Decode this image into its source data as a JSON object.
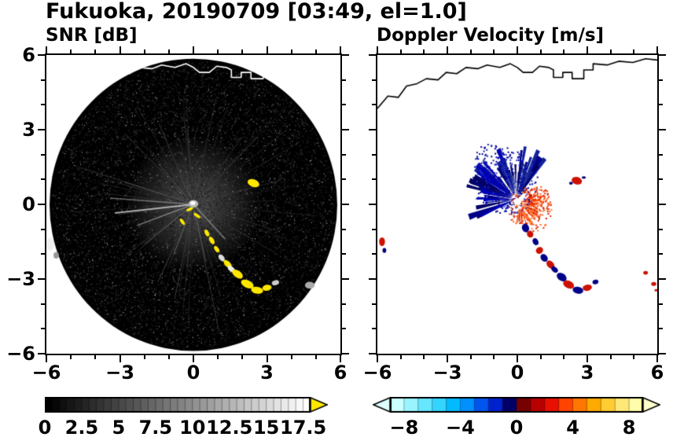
{
  "title": "Fukuoka, 20190709 [03:49, el=1.0]",
  "panels": {
    "snr": {
      "title": "SNR [dB]"
    },
    "velocity": {
      "title": "Doppler Velocity [m/s]"
    }
  },
  "chart_data": [
    {
      "id": "snr",
      "type": "heatmap",
      "title": "SNR [dB]",
      "xlim": [
        -6,
        6
      ],
      "ylim": [
        -6,
        6
      ],
      "xticks": [
        -6,
        -3,
        0,
        3,
        6
      ],
      "xtick_labels": [
        "−6",
        "−3",
        "0",
        "3",
        "6"
      ],
      "yticks": [
        -6,
        -3,
        0,
        3,
        6
      ],
      "ytick_labels": [
        "−6",
        "−3",
        "0",
        "3",
        "6"
      ],
      "show_ylabels": true,
      "minor_tick_step": 1,
      "background": "#ffffff",
      "radar_disk": {
        "cx": 0,
        "cy": -0.02,
        "r": 5.87,
        "color": "#000000",
        "noise_count": 9000,
        "bright_noise_count": 800,
        "ray_count": 80,
        "glow_r": 2.8
      },
      "spokes": [
        {
          "x1": 0,
          "y1": 0,
          "x2": -3.2,
          "y2": -0.35,
          "color": "rgba(200,200,200,0.85)",
          "w": 2
        },
        {
          "x1": 0,
          "y1": 0,
          "x2": -3.4,
          "y2": 0.25,
          "color": "rgba(150,150,150,0.7)",
          "w": 1.5
        },
        {
          "x1": 0,
          "y1": 0,
          "x2": -2.3,
          "y2": -0.85,
          "color": "rgba(165,165,165,0.7)",
          "w": 1.5
        },
        {
          "x1": 0,
          "y1": 0,
          "x2": -2.8,
          "y2": 0.9,
          "color": "rgba(120,120,120,0.55)",
          "w": 1
        },
        {
          "x1": 0,
          "y1": 0,
          "x2": -1.4,
          "y2": 1.6,
          "color": "rgba(110,110,110,0.5)",
          "w": 1
        },
        {
          "x1": 0,
          "y1": 0,
          "x2": 2.6,
          "y2": 2.7,
          "color": "rgba(100,100,100,0.45)",
          "w": 1
        },
        {
          "x1": 0,
          "y1": 0,
          "x2": 3.6,
          "y2": 1.0,
          "color": "rgba(90,90,90,0.4)",
          "w": 1
        },
        {
          "x1": 0,
          "y1": 0,
          "x2": 1.3,
          "y2": -1.4,
          "color": "rgba(170,170,170,0.65)",
          "w": 1.5
        },
        {
          "x1": 0,
          "y1": 0,
          "x2": 0.5,
          "y2": -2.3,
          "color": "rgba(130,130,130,0.5)",
          "w": 1
        },
        {
          "x1": 0,
          "y1": 0,
          "x2": -0.8,
          "y2": -2.0,
          "color": "rgba(140,140,140,0.55)",
          "w": 1
        },
        {
          "x1": 0,
          "y1": 0,
          "x2": -2.0,
          "y2": -1.6,
          "color": "rgba(150,150,150,0.5)",
          "w": 1
        }
      ],
      "coastline": {
        "color": "#ffffff",
        "clip_disk": true,
        "points": [
          [
            -6,
            3.85
          ],
          [
            -5.55,
            4.35
          ],
          [
            -5.1,
            4.3
          ],
          [
            -4.75,
            4.75
          ],
          [
            -4.3,
            4.85
          ],
          [
            -3.9,
            5.05
          ],
          [
            -3.4,
            5.0
          ],
          [
            -3.05,
            5.3
          ],
          [
            -2.6,
            5.25
          ],
          [
            -2.2,
            5.5
          ],
          [
            -1.7,
            5.45
          ],
          [
            -1.3,
            5.6
          ],
          [
            -0.75,
            5.5
          ],
          [
            -0.3,
            5.65
          ],
          [
            0.0,
            5.5
          ],
          [
            0.25,
            5.3
          ],
          [
            0.65,
            5.3
          ],
          [
            0.95,
            5.55
          ],
          [
            1.35,
            5.5
          ],
          [
            1.55,
            5.4
          ],
          [
            1.55,
            5.1
          ],
          [
            1.95,
            5.1
          ],
          [
            1.95,
            5.3
          ],
          [
            2.35,
            5.3
          ],
          [
            2.35,
            5.05
          ],
          [
            2.85,
            5.05
          ],
          [
            2.85,
            5.4
          ],
          [
            3.25,
            5.4
          ],
          [
            3.25,
            5.65
          ],
          [
            3.85,
            5.6
          ],
          [
            4.35,
            5.75
          ],
          [
            4.95,
            5.7
          ],
          [
            5.5,
            5.85
          ],
          [
            6.0,
            5.8
          ]
        ]
      },
      "echoes": [
        {
          "x": 0.0,
          "y": 0.02,
          "w": 0.4,
          "h": 0.3,
          "rot": 0,
          "color": "#bbbbbb"
        },
        {
          "x": -0.02,
          "y": 0.05,
          "w": 0.2,
          "h": 0.15,
          "rot": 0,
          "color": "#ffffff"
        },
        {
          "x": -0.15,
          "y": -0.2,
          "w": 0.3,
          "h": 0.12,
          "rot": 25,
          "color": "#ffe800"
        },
        {
          "x": 0.15,
          "y": -0.45,
          "w": 0.32,
          "h": 0.12,
          "rot": -35,
          "color": "#ffe800"
        },
        {
          "x": -0.45,
          "y": -0.7,
          "w": 0.3,
          "h": 0.13,
          "rot": -55,
          "color": "#ffe800"
        },
        {
          "x": 2.45,
          "y": 0.85,
          "w": 0.5,
          "h": 0.3,
          "rot": -20,
          "color": "#ffe800"
        },
        {
          "x": 0.55,
          "y": -1.15,
          "w": 0.3,
          "h": 0.16,
          "rot": -65,
          "color": "#ffe800"
        },
        {
          "x": 0.75,
          "y": -1.45,
          "w": 0.34,
          "h": 0.18,
          "rot": -60,
          "color": "#ffe800"
        },
        {
          "x": 0.95,
          "y": -1.8,
          "w": 0.3,
          "h": 0.16,
          "rot": -55,
          "color": "#ffe800"
        },
        {
          "x": 1.15,
          "y": -2.15,
          "w": 0.32,
          "h": 0.2,
          "rot": -50,
          "color": "#dddddd"
        },
        {
          "x": 1.4,
          "y": -2.4,
          "w": 0.42,
          "h": 0.22,
          "rot": -45,
          "color": "#ffe800"
        },
        {
          "x": 1.55,
          "y": -2.6,
          "w": 0.36,
          "h": 0.2,
          "rot": -40,
          "color": "#eeeeee"
        },
        {
          "x": 1.8,
          "y": -2.8,
          "w": 0.5,
          "h": 0.28,
          "rot": -35,
          "color": "#ffe800"
        },
        {
          "x": 2.2,
          "y": -3.2,
          "w": 0.55,
          "h": 0.3,
          "rot": -25,
          "color": "#ffe800"
        },
        {
          "x": 2.6,
          "y": -3.45,
          "w": 0.5,
          "h": 0.28,
          "rot": -10,
          "color": "#ffe800"
        },
        {
          "x": 3.0,
          "y": -3.35,
          "w": 0.38,
          "h": 0.24,
          "rot": 10,
          "color": "#ffe800"
        },
        {
          "x": 3.35,
          "y": -3.15,
          "w": 0.3,
          "h": 0.2,
          "rot": 15,
          "color": "#cccccc"
        },
        {
          "x": 4.75,
          "y": -3.25,
          "w": 0.4,
          "h": 0.28,
          "rot": 0,
          "color": "#aaaaaa"
        },
        {
          "x": -5.85,
          "y": -1.6,
          "w": 0.35,
          "h": 0.5,
          "rot": 0,
          "color": "#eeeeee"
        },
        {
          "x": -5.6,
          "y": -2.05,
          "w": 0.22,
          "h": 0.26,
          "rot": 0,
          "color": "#999999"
        }
      ],
      "colorbar": {
        "min": 0,
        "max": 18,
        "segments": 36,
        "colormap": "grayscale",
        "arrow_right": "#ffe800",
        "label_values": [
          0,
          2.5,
          5,
          7.5,
          10,
          12.5,
          15,
          17.5
        ],
        "labels": [
          "0",
          "2.5",
          "5",
          "7.5",
          "10",
          "12.5",
          "15",
          "17.5"
        ]
      }
    },
    {
      "id": "velocity",
      "type": "heatmap",
      "title": "Doppler Velocity [m/s]",
      "xlim": [
        -6,
        6
      ],
      "ylim": [
        -6,
        6
      ],
      "xticks": [
        -6,
        -3,
        0,
        3,
        6
      ],
      "xtick_labels": [
        "−6",
        "−3",
        "0",
        "3",
        "6"
      ],
      "yticks": [
        -6,
        -3,
        0,
        3,
        6
      ],
      "ytick_labels": [
        "−6",
        "−3",
        "0",
        "3",
        "6"
      ],
      "show_ylabels": false,
      "minor_tick_step": 1,
      "background": "#ffffff",
      "coastline": {
        "color": "#000000",
        "clip_disk": false,
        "points": [
          [
            -6,
            3.85
          ],
          [
            -5.55,
            4.35
          ],
          [
            -5.1,
            4.3
          ],
          [
            -4.75,
            4.75
          ],
          [
            -4.3,
            4.85
          ],
          [
            -3.9,
            5.05
          ],
          [
            -3.4,
            5.0
          ],
          [
            -3.05,
            5.3
          ],
          [
            -2.6,
            5.25
          ],
          [
            -2.2,
            5.5
          ],
          [
            -1.7,
            5.45
          ],
          [
            -1.3,
            5.6
          ],
          [
            -0.75,
            5.5
          ],
          [
            -0.3,
            5.65
          ],
          [
            0.0,
            5.5
          ],
          [
            0.25,
            5.3
          ],
          [
            0.65,
            5.3
          ],
          [
            0.95,
            5.55
          ],
          [
            1.35,
            5.5
          ],
          [
            1.55,
            5.4
          ],
          [
            1.55,
            5.1
          ],
          [
            1.95,
            5.1
          ],
          [
            1.95,
            5.3
          ],
          [
            2.35,
            5.3
          ],
          [
            2.35,
            5.05
          ],
          [
            2.85,
            5.05
          ],
          [
            2.85,
            5.4
          ],
          [
            3.25,
            5.4
          ],
          [
            3.25,
            5.65
          ],
          [
            3.85,
            5.6
          ],
          [
            4.35,
            5.75
          ],
          [
            4.95,
            5.7
          ],
          [
            5.5,
            5.85
          ],
          [
            6.0,
            5.8
          ]
        ]
      },
      "fans": [
        {
          "cx": -0.05,
          "cy": 0.2,
          "r0": 0.18,
          "angle_min": 40,
          "angle_max": 215,
          "len_min": 0.5,
          "len_max": 2.2,
          "count": 70,
          "colors": [
            "#000088",
            "#0000bb",
            "#112299",
            "#000066"
          ]
        },
        {
          "cx": 0.1,
          "cy": 0.0,
          "r0": 0.15,
          "angle_min": -100,
          "angle_max": 35,
          "len_min": 0.2,
          "len_max": 1.05,
          "count": 55,
          "colors": [
            "#bb1100",
            "#ee3300",
            "#ff5511",
            "#ff7733"
          ]
        }
      ],
      "speckles": [
        {
          "cx": -0.45,
          "cy": 0.95,
          "r": 1.35,
          "count": 220,
          "colors": [
            "#0000aa",
            "#000077",
            "#2233cc"
          ]
        },
        {
          "cx": -1.1,
          "cy": 1.7,
          "r": 0.8,
          "count": 70,
          "colors": [
            "#0000aa",
            "#112299"
          ]
        },
        {
          "cx": 0.55,
          "cy": -0.15,
          "r": 0.95,
          "count": 170,
          "colors": [
            "#ee3300",
            "#ff6622",
            "#cc1100",
            "#ff8844"
          ]
        },
        {
          "cx": 0.9,
          "cy": 0.25,
          "r": 0.5,
          "count": 50,
          "colors": [
            "#ff5511",
            "#ee3300"
          ]
        }
      ],
      "echoes": [
        {
          "x": 0.0,
          "y": 0.12,
          "w": 0.3,
          "h": 0.26,
          "rot": 0,
          "color": "#ffffff"
        },
        {
          "x": 2.55,
          "y": 0.95,
          "w": 0.45,
          "h": 0.3,
          "rot": -15,
          "color": "#cc1100"
        },
        {
          "x": 2.3,
          "y": 0.85,
          "w": 0.16,
          "h": 0.12,
          "rot": 0,
          "color": "#000077"
        },
        {
          "x": 2.85,
          "y": 1.08,
          "w": 0.18,
          "h": 0.1,
          "rot": 0,
          "color": "#000077"
        },
        {
          "x": 0.35,
          "y": -0.95,
          "w": 0.3,
          "h": 0.35,
          "rot": 20,
          "color": "#000088"
        },
        {
          "x": 0.55,
          "y": -1.2,
          "w": 0.3,
          "h": 0.25,
          "rot": -60,
          "color": "#cc1100"
        },
        {
          "x": 0.78,
          "y": -1.5,
          "w": 0.32,
          "h": 0.22,
          "rot": -60,
          "color": "#000088"
        },
        {
          "x": 0.95,
          "y": -1.85,
          "w": 0.28,
          "h": 0.3,
          "rot": -55,
          "color": "#cc1100"
        },
        {
          "x": 1.15,
          "y": -2.15,
          "w": 0.36,
          "h": 0.26,
          "rot": -50,
          "color": "#000088"
        },
        {
          "x": 1.42,
          "y": -2.42,
          "w": 0.4,
          "h": 0.26,
          "rot": -45,
          "color": "#cc1100"
        },
        {
          "x": 1.6,
          "y": -2.62,
          "w": 0.32,
          "h": 0.2,
          "rot": -40,
          "color": "#000088"
        },
        {
          "x": 1.9,
          "y": -2.92,
          "w": 0.46,
          "h": 0.3,
          "rot": -35,
          "color": "#000088"
        },
        {
          "x": 2.2,
          "y": -3.22,
          "w": 0.5,
          "h": 0.3,
          "rot": -25,
          "color": "#cc1100"
        },
        {
          "x": 2.6,
          "y": -3.45,
          "w": 0.46,
          "h": 0.28,
          "rot": -10,
          "color": "#000088"
        },
        {
          "x": 3.0,
          "y": -3.35,
          "w": 0.4,
          "h": 0.25,
          "rot": 10,
          "color": "#cc1100"
        },
        {
          "x": 3.35,
          "y": -3.12,
          "w": 0.26,
          "h": 0.18,
          "rot": 15,
          "color": "#000088"
        },
        {
          "x": -5.8,
          "y": -1.5,
          "w": 0.25,
          "h": 0.35,
          "rot": 0,
          "color": "#cc1100"
        },
        {
          "x": -5.7,
          "y": -1.85,
          "w": 0.16,
          "h": 0.2,
          "rot": 0,
          "color": "#000077"
        },
        {
          "x": 5.5,
          "y": -2.75,
          "w": 0.2,
          "h": 0.15,
          "rot": 0,
          "color": "#cc1100"
        },
        {
          "x": 5.85,
          "y": -3.2,
          "w": 0.22,
          "h": 0.16,
          "rot": 0,
          "color": "#cc1100"
        },
        {
          "x": 5.95,
          "y": -3.45,
          "w": 0.14,
          "h": 0.1,
          "rot": 0,
          "color": "#cc1100"
        }
      ],
      "colorbar": {
        "min": -9,
        "max": 9,
        "colors": [
          "#ccffff",
          "#99f4ff",
          "#66e6ff",
          "#33d5ff",
          "#00bbff",
          "#0090ff",
          "#0055ee",
          "#0022cc",
          "#000066",
          "#770000",
          "#b80000",
          "#e81000",
          "#ff4400",
          "#ff7700",
          "#ffaa00",
          "#ffcc33",
          "#ffe877",
          "#fffcaa"
        ],
        "arrow_left": "#ddffff",
        "arrow_right": "#ffffcc",
        "label_values": [
          -8,
          -4,
          0,
          4,
          8
        ],
        "labels": [
          "−8",
          "−4",
          "0",
          "4",
          "8"
        ]
      }
    }
  ]
}
